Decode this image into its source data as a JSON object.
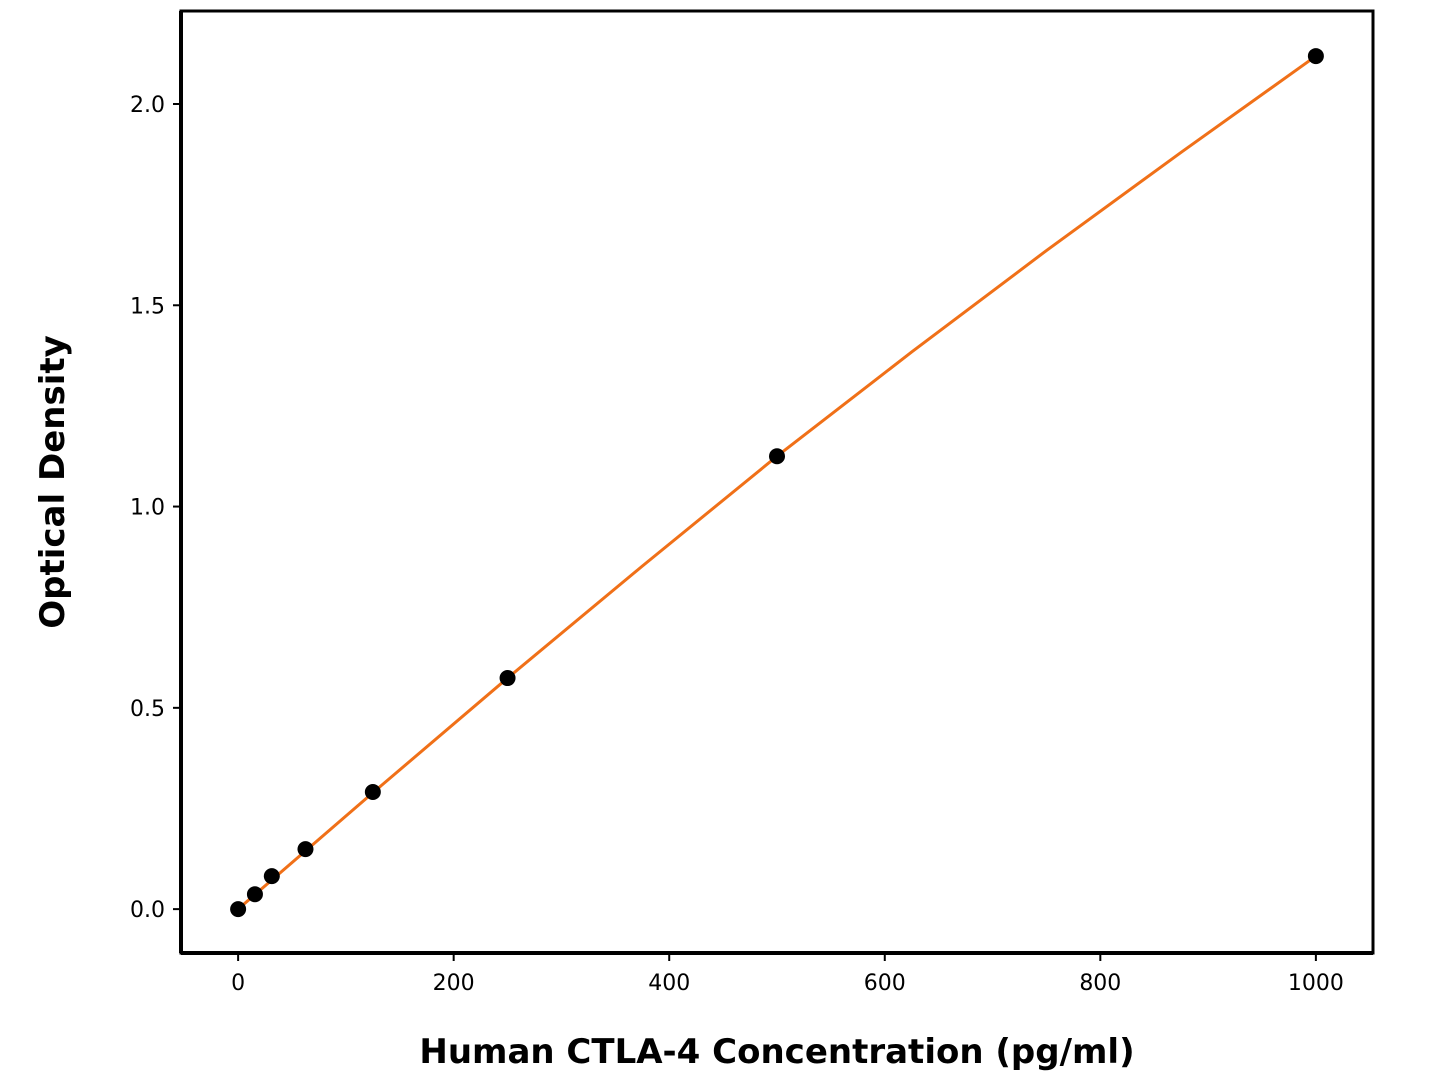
{
  "chart_data": {
    "type": "scatter",
    "x_label": "Human CTLA-4 Concentration (pg/ml)",
    "y_label": "Optical Density",
    "x": [
      0,
      15.6,
      31.25,
      62.5,
      125,
      250,
      500,
      1000
    ],
    "values": [
      0,
      0.037,
      0.082,
      0.149,
      0.291,
      0.574,
      1.125,
      2.119
    ],
    "color": "#000000",
    "fit": {
      "x": [
        0,
        125,
        250,
        375,
        500,
        625,
        750,
        875,
        1000
      ],
      "values": [
        0,
        0.289,
        0.574,
        0.852,
        1.125,
        1.384,
        1.636,
        1.88,
        2.119
      ],
      "color": "#f07018"
    },
    "xlim": [
      -53,
      1053
    ],
    "ylim": [
      -0.109,
      2.231
    ],
    "xticks": [
      0,
      200,
      400,
      600,
      800,
      1000
    ],
    "yticks": [
      {
        "value": 0,
        "label": "0.0"
      },
      {
        "value": 0.5,
        "label": "0.5"
      },
      {
        "value": 1,
        "label": "1.0"
      },
      {
        "value": 1.5,
        "label": "1.5"
      },
      {
        "value": 2,
        "label": "2.0"
      }
    ],
    "grid": false
  }
}
